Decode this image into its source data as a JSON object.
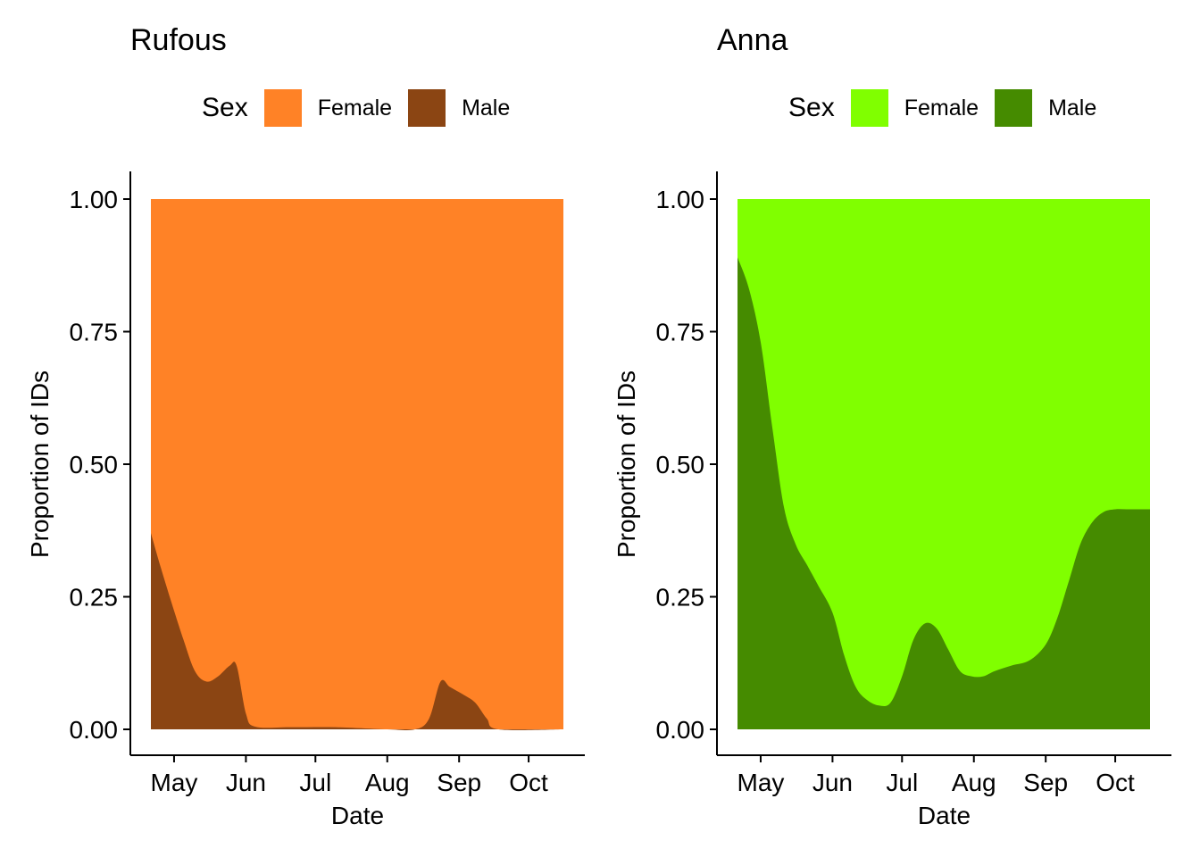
{
  "panels": [
    {
      "title": "Rufous",
      "legend": {
        "title": "Sex",
        "entries": [
          "Female",
          "Male"
        ]
      },
      "colors": {
        "Female": "#FF8226",
        "Male": "#8B4513"
      }
    },
    {
      "title": "Anna",
      "legend": {
        "title": "Sex",
        "entries": [
          "Female",
          "Male"
        ]
      },
      "colors": {
        "Female": "#80FF00",
        "Male": "#458B00"
      }
    }
  ],
  "chart_data": [
    {
      "type": "area",
      "title": "Rufous",
      "stacked": "fill",
      "xlabel": "Date",
      "ylabel": "Proportion of IDs",
      "x_tick_labels": [
        "May",
        "Jun",
        "Jul",
        "Aug",
        "Sep",
        "Oct"
      ],
      "y_tick_labels": [
        "0.00",
        "0.25",
        "0.50",
        "0.75",
        "1.00"
      ],
      "ylim": [
        0,
        1
      ],
      "xlim": [
        "Apr 21",
        "Oct 16"
      ],
      "grid": false,
      "legend_position": "top",
      "x": [
        "Apr 21",
        "Apr 27",
        "May 5",
        "May 10",
        "May 15",
        "May 20",
        "May 25",
        "May 28",
        "Jun 1",
        "Jun 5",
        "Jun 20",
        "Jul 10",
        "Aug 1",
        "Aug 13",
        "Aug 19",
        "Aug 24",
        "Aug 28",
        "Sep 3",
        "Sep 8",
        "Sep 13",
        "Sep 18",
        "Oct 16"
      ],
      "series": [
        {
          "name": "Male",
          "values": [
            0.37,
            0.28,
            0.17,
            0.11,
            0.09,
            0.1,
            0.12,
            0.12,
            0.03,
            0.005,
            0.004,
            0.004,
            0.0,
            0.0,
            0.02,
            0.09,
            0.08,
            0.065,
            0.05,
            0.02,
            0.0,
            0.0
          ]
        },
        {
          "name": "Female",
          "values": [
            0.63,
            0.72,
            0.83,
            0.89,
            0.91,
            0.9,
            0.88,
            0.88,
            0.97,
            0.995,
            0.996,
            0.996,
            1.0,
            1.0,
            0.98,
            0.91,
            0.92,
            0.935,
            0.95,
            0.98,
            1.0,
            1.0
          ]
        }
      ]
    },
    {
      "type": "area",
      "title": "Anna",
      "stacked": "fill",
      "xlabel": "Date",
      "ylabel": "Proportion of IDs",
      "x_tick_labels": [
        "May",
        "Jun",
        "Jul",
        "Aug",
        "Sep",
        "Oct"
      ],
      "y_tick_labels": [
        "0.00",
        "0.25",
        "0.50",
        "0.75",
        "1.00"
      ],
      "ylim": [
        0,
        1
      ],
      "xlim": [
        "Apr 21",
        "Oct 16"
      ],
      "grid": false,
      "legend_position": "top",
      "x": [
        "Apr 21",
        "Apr 26",
        "May 1",
        "May 6",
        "May 11",
        "May 16",
        "May 21",
        "May 26",
        "Jun 1",
        "Jun 6",
        "Jun 11",
        "Jun 16",
        "Jun 21",
        "Jun 26",
        "Jul 1",
        "Jul 6",
        "Jul 11",
        "Jul 16",
        "Jul 21",
        "Jul 26",
        "Jul 31",
        "Aug 5",
        "Aug 10",
        "Aug 17",
        "Aug 25",
        "Sep 1",
        "Sep 6",
        "Sep 11",
        "Sep 16",
        "Sep 21",
        "Sep 26",
        "Oct 1",
        "Oct 6",
        "Oct 11",
        "Oct 16"
      ],
      "series": [
        {
          "name": "Male",
          "values": [
            0.89,
            0.83,
            0.73,
            0.57,
            0.42,
            0.35,
            0.31,
            0.27,
            0.22,
            0.14,
            0.08,
            0.055,
            0.045,
            0.05,
            0.1,
            0.17,
            0.2,
            0.19,
            0.15,
            0.11,
            0.1,
            0.1,
            0.11,
            0.12,
            0.13,
            0.16,
            0.21,
            0.28,
            0.35,
            0.39,
            0.41,
            0.415,
            0.415,
            0.415,
            0.415
          ]
        },
        {
          "name": "Female",
          "values": [
            0.11,
            0.17,
            0.27,
            0.43,
            0.58,
            0.65,
            0.69,
            0.73,
            0.78,
            0.86,
            0.92,
            0.945,
            0.955,
            0.95,
            0.9,
            0.83,
            0.8,
            0.81,
            0.85,
            0.89,
            0.9,
            0.9,
            0.89,
            0.88,
            0.87,
            0.84,
            0.79,
            0.72,
            0.65,
            0.61,
            0.59,
            0.585,
            0.585,
            0.585,
            0.585
          ]
        }
      ]
    }
  ]
}
